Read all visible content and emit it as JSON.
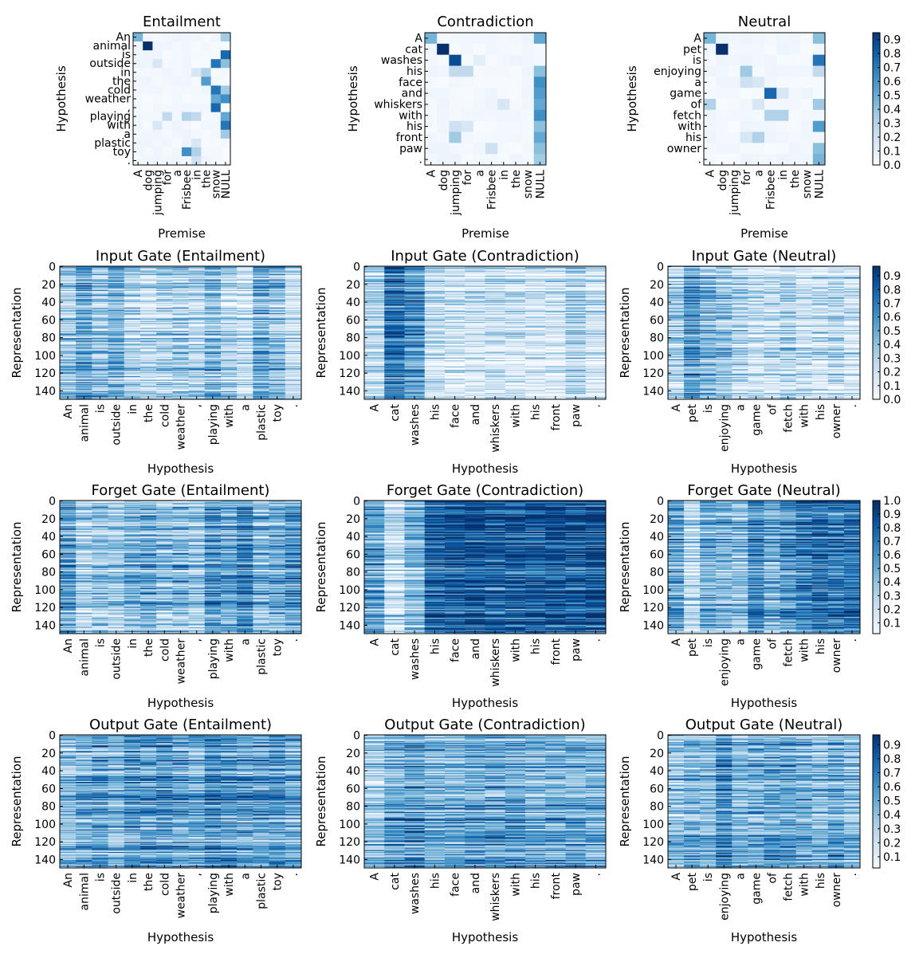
{
  "chart_data": [
    {
      "type": "heatmap",
      "title": "Entailment",
      "xlabel": "Premise",
      "ylabel": "Hypothesis",
      "x_tokens": [
        "A",
        "dog",
        "jumping",
        "for",
        "a",
        "Frisbee",
        "in",
        "the",
        "snow",
        "NULL"
      ],
      "y_tokens": [
        "An",
        "animal",
        "is",
        "outside",
        "in",
        "the",
        "cold",
        "weather",
        ",",
        "playing",
        "with",
        "a",
        "plastic",
        "toy",
        "."
      ],
      "highlights": [
        [
          0,
          0,
          0.45
        ],
        [
          0,
          9,
          0.35
        ],
        [
          1,
          1,
          0.95
        ],
        [
          2,
          9,
          0.75
        ],
        [
          3,
          2,
          0.15
        ],
        [
          3,
          8,
          0.7
        ],
        [
          3,
          9,
          0.4
        ],
        [
          4,
          7,
          0.3
        ],
        [
          4,
          6,
          0.15
        ],
        [
          5,
          7,
          0.55
        ],
        [
          6,
          8,
          0.7
        ],
        [
          6,
          9,
          0.35
        ],
        [
          7,
          8,
          0.5
        ],
        [
          7,
          9,
          0.6
        ],
        [
          8,
          8,
          0.75
        ],
        [
          9,
          3,
          0.25
        ],
        [
          9,
          5,
          0.3
        ],
        [
          9,
          6,
          0.25
        ],
        [
          9,
          9,
          0.5
        ],
        [
          10,
          9,
          0.7
        ],
        [
          10,
          2,
          0.15
        ],
        [
          11,
          9,
          0.35
        ],
        [
          12,
          6,
          0.15
        ],
        [
          13,
          5,
          0.6
        ],
        [
          13,
          6,
          0.3
        ],
        [
          14,
          6,
          0.2
        ]
      ],
      "base_level": 0.05
    },
    {
      "type": "heatmap",
      "title": "Contradiction",
      "xlabel": "Premise",
      "ylabel": "Hypothesis",
      "x_tokens": [
        "A",
        "dog",
        "jumping",
        "for",
        "a",
        "Frisbee",
        "in",
        "the",
        "snow",
        "NULL"
      ],
      "y_tokens": [
        "A",
        "cat",
        "washes",
        "his",
        "face",
        "and",
        "whiskers",
        "with",
        "his",
        "front",
        "paw",
        "."
      ],
      "highlights": [
        [
          0,
          0,
          0.45
        ],
        [
          0,
          9,
          0.5
        ],
        [
          1,
          1,
          0.95
        ],
        [
          2,
          2,
          0.85
        ],
        [
          2,
          4,
          0.1
        ],
        [
          3,
          2,
          0.25
        ],
        [
          3,
          3,
          0.25
        ],
        [
          3,
          9,
          0.4
        ],
        [
          4,
          9,
          0.6
        ],
        [
          5,
          9,
          0.55
        ],
        [
          6,
          9,
          0.5
        ],
        [
          6,
          6,
          0.15
        ],
        [
          7,
          9,
          0.6
        ],
        [
          8,
          2,
          0.2
        ],
        [
          8,
          3,
          0.15
        ],
        [
          8,
          9,
          0.4
        ],
        [
          9,
          2,
          0.35
        ],
        [
          9,
          9,
          0.5
        ],
        [
          10,
          5,
          0.2
        ],
        [
          10,
          9,
          0.4
        ],
        [
          11,
          9,
          0.35
        ]
      ],
      "base_level": 0.05
    },
    {
      "type": "heatmap",
      "title": "Neutral",
      "xlabel": "Premise",
      "ylabel": "Hypothesis",
      "x_tokens": [
        "A",
        "dog",
        "jumping",
        "for",
        "a",
        "Frisbee",
        "in",
        "the",
        "snow",
        "NULL"
      ],
      "y_tokens": [
        "A",
        "pet",
        "is",
        "enjoying",
        "a",
        "game",
        "of",
        "fetch",
        "with",
        "his",
        "owner",
        "."
      ],
      "highlights": [
        [
          0,
          0,
          0.45
        ],
        [
          0,
          9,
          0.4
        ],
        [
          1,
          1,
          0.95
        ],
        [
          2,
          9,
          0.7
        ],
        [
          3,
          3,
          0.35
        ],
        [
          3,
          9,
          0.25
        ],
        [
          4,
          3,
          0.2
        ],
        [
          4,
          4,
          0.15
        ],
        [
          5,
          5,
          0.75
        ],
        [
          5,
          6,
          0.15
        ],
        [
          6,
          0,
          0.3
        ],
        [
          6,
          4,
          0.15
        ],
        [
          6,
          9,
          0.35
        ],
        [
          7,
          5,
          0.3
        ],
        [
          7,
          6,
          0.3
        ],
        [
          8,
          9,
          0.55
        ],
        [
          9,
          3,
          0.15
        ],
        [
          9,
          4,
          0.3
        ],
        [
          10,
          9,
          0.4
        ],
        [
          11,
          9,
          0.45
        ]
      ],
      "base_level": 0.05
    },
    {
      "type": "heatmap",
      "title": "Input Gate (Entailment)",
      "xlabel": "Hypothesis",
      "ylabel": "Representation",
      "y_ticks": [
        0,
        20,
        40,
        60,
        80,
        100,
        120,
        140
      ],
      "rows": 150,
      "x_tokens": [
        "An",
        "animal",
        "is",
        "outside",
        "in",
        "the",
        "cold",
        "weather",
        ",",
        "playing",
        "with",
        "a",
        "plastic",
        "toy",
        "."
      ],
      "column_means": [
        0.35,
        0.55,
        0.4,
        0.5,
        0.3,
        0.25,
        0.3,
        0.35,
        0.3,
        0.45,
        0.3,
        0.2,
        0.5,
        0.4,
        0.2
      ]
    },
    {
      "type": "heatmap",
      "title": "Input Gate (Contradiction)",
      "xlabel": "Hypothesis",
      "ylabel": "Representation",
      "y_ticks": [
        0,
        20,
        40,
        60,
        80,
        100,
        120,
        140
      ],
      "rows": 150,
      "x_tokens": [
        "A",
        "cat",
        "washes",
        "his",
        "face",
        "and",
        "whiskers",
        "with",
        "his",
        "front",
        "paw",
        "."
      ],
      "column_means": [
        0.25,
        0.75,
        0.6,
        0.2,
        0.15,
        0.15,
        0.2,
        0.15,
        0.15,
        0.15,
        0.3,
        0.15
      ]
    },
    {
      "type": "heatmap",
      "title": "Input Gate (Neutral)",
      "xlabel": "Hypothesis",
      "ylabel": "Representation",
      "y_ticks": [
        0,
        20,
        40,
        60,
        80,
        100,
        120,
        140
      ],
      "rows": 150,
      "x_tokens": [
        "A",
        "pet",
        "is",
        "enjoying",
        "a",
        "game",
        "of",
        "fetch",
        "with",
        "his",
        "owner",
        "."
      ],
      "column_means": [
        0.3,
        0.6,
        0.45,
        0.4,
        0.3,
        0.2,
        0.2,
        0.3,
        0.2,
        0.2,
        0.25,
        0.2
      ]
    },
    {
      "type": "heatmap",
      "title": "Forget Gate (Entailment)",
      "xlabel": "Hypothesis",
      "ylabel": "Representation",
      "y_ticks": [
        0,
        20,
        40,
        60,
        80,
        100,
        120,
        140
      ],
      "rows": 150,
      "x_tokens": [
        "An",
        "animal",
        "is",
        "outside",
        "in",
        "the",
        "cold",
        "weather",
        ",",
        "playing",
        "with",
        "a",
        "plastic",
        "toy",
        "."
      ],
      "column_means": [
        0.6,
        0.3,
        0.4,
        0.35,
        0.45,
        0.5,
        0.4,
        0.45,
        0.35,
        0.6,
        0.55,
        0.7,
        0.45,
        0.5,
        0.6
      ]
    },
    {
      "type": "heatmap",
      "title": "Forget Gate (Contradiction)",
      "xlabel": "Hypothesis",
      "ylabel": "Representation",
      "y_ticks": [
        0,
        20,
        40,
        60,
        80,
        100,
        120,
        140
      ],
      "rows": 150,
      "x_tokens": [
        "A",
        "cat",
        "washes",
        "his",
        "face",
        "and",
        "whiskers",
        "with",
        "his",
        "front",
        "paw",
        "."
      ],
      "column_means": [
        0.55,
        0.2,
        0.45,
        0.8,
        0.85,
        0.9,
        0.85,
        0.85,
        0.85,
        0.9,
        0.85,
        0.9
      ]
    },
    {
      "type": "heatmap",
      "title": "Forget Gate (Neutral)",
      "xlabel": "Hypothesis",
      "ylabel": "Representation",
      "y_ticks": [
        0,
        20,
        40,
        60,
        80,
        100,
        120,
        140
      ],
      "rows": 150,
      "x_tokens": [
        "A",
        "pet",
        "is",
        "enjoying",
        "a",
        "game",
        "of",
        "fetch",
        "with",
        "his",
        "owner",
        "."
      ],
      "column_means": [
        0.55,
        0.25,
        0.5,
        0.45,
        0.4,
        0.65,
        0.5,
        0.6,
        0.7,
        0.75,
        0.7,
        0.75
      ]
    },
    {
      "type": "heatmap",
      "title": "Output Gate (Entailment)",
      "xlabel": "Hypothesis",
      "ylabel": "Representation",
      "y_ticks": [
        0,
        20,
        40,
        60,
        80,
        100,
        120,
        140
      ],
      "rows": 150,
      "x_tokens": [
        "An",
        "animal",
        "is",
        "outside",
        "in",
        "the",
        "cold",
        "weather",
        ",",
        "playing",
        "with",
        "a",
        "plastic",
        "toy",
        "."
      ],
      "column_means": [
        0.4,
        0.5,
        0.55,
        0.45,
        0.6,
        0.55,
        0.6,
        0.55,
        0.5,
        0.65,
        0.6,
        0.55,
        0.55,
        0.6,
        0.5
      ]
    },
    {
      "type": "heatmap",
      "title": "Output Gate (Contradiction)",
      "xlabel": "Hypothesis",
      "ylabel": "Representation",
      "y_ticks": [
        0,
        20,
        40,
        60,
        80,
        100,
        120,
        140
      ],
      "rows": 150,
      "x_tokens": [
        "A",
        "cat",
        "washes",
        "his",
        "face",
        "and",
        "whiskers",
        "with",
        "his",
        "front",
        "paw",
        "."
      ],
      "column_means": [
        0.35,
        0.55,
        0.6,
        0.5,
        0.5,
        0.55,
        0.55,
        0.55,
        0.5,
        0.5,
        0.55,
        0.5
      ]
    },
    {
      "type": "heatmap",
      "title": "Output Gate (Neutral)",
      "xlabel": "Hypothesis",
      "ylabel": "Representation",
      "y_ticks": [
        0,
        20,
        40,
        60,
        80,
        100,
        120,
        140
      ],
      "rows": 150,
      "x_tokens": [
        "A",
        "pet",
        "is",
        "enjoying",
        "a",
        "game",
        "of",
        "fetch",
        "with",
        "his",
        "owner",
        "."
      ],
      "column_means": [
        0.4,
        0.5,
        0.45,
        0.65,
        0.45,
        0.5,
        0.55,
        0.55,
        0.5,
        0.45,
        0.55,
        0.45
      ]
    }
  ],
  "colorbars": [
    {
      "ticks": [
        "0.0",
        "0.1",
        "0.2",
        "0.3",
        "0.4",
        "0.5",
        "0.6",
        "0.7",
        "0.8",
        "0.9"
      ],
      "range": [
        0,
        0.95
      ]
    },
    {
      "ticks": [
        "0.0",
        "0.1",
        "0.2",
        "0.3",
        "0.4",
        "0.5",
        "0.6",
        "0.7",
        "0.8",
        "0.9"
      ],
      "range": [
        0,
        0.97
      ]
    },
    {
      "ticks": [
        "0.1",
        "0.2",
        "0.3",
        "0.4",
        "0.5",
        "0.6",
        "0.7",
        "0.8",
        "0.9",
        "1.0"
      ],
      "range": [
        0.02,
        1.0
      ]
    },
    {
      "ticks": [
        "0.1",
        "0.2",
        "0.3",
        "0.4",
        "0.5",
        "0.6",
        "0.7",
        "0.8",
        "0.9"
      ],
      "range": [
        0.02,
        0.97
      ]
    }
  ],
  "colormap": "Blues"
}
